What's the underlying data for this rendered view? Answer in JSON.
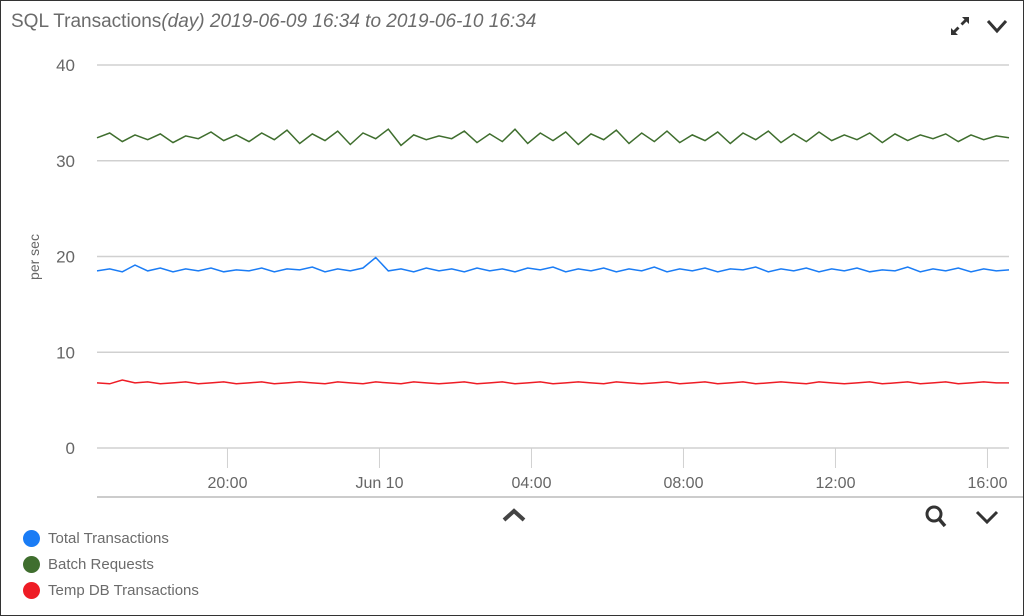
{
  "header": {
    "title_main": "SQL Transactions",
    "title_period": "(day) 2019-06-09 16:34 to 2019-06-10 16:34",
    "icons": [
      "expand-icon",
      "chevron-down-icon"
    ]
  },
  "footer": {
    "icons": [
      "chevron-up-icon",
      "zoom-icon",
      "chevron-down-icon"
    ]
  },
  "chart_data": {
    "type": "line",
    "title": "SQL Transactions(day) 2019-06-09 16:34 to 2019-06-10 16:34",
    "ylabel": "per sec",
    "xlabel": "",
    "ylim": [
      0,
      40
    ],
    "yticks": [
      "0",
      "10",
      "20",
      "30",
      "40"
    ],
    "x_range": [
      "2019-06-09 16:34",
      "2019-06-10 16:34"
    ],
    "interval_minutes": 20,
    "xticks": [
      {
        "label": "20:00",
        "time": "2019-06-09 20:00"
      },
      {
        "label": "Jun 10",
        "time": "2019-06-10 00:00"
      },
      {
        "label": "04:00",
        "time": "2019-06-10 04:00"
      },
      {
        "label": "08:00",
        "time": "2019-06-10 08:00"
      },
      {
        "label": "12:00",
        "time": "2019-06-10 12:00"
      },
      {
        "label": "16:00",
        "time": "2019-06-10 16:00"
      }
    ],
    "grid": true,
    "legend_placement": "bottom-left",
    "series": [
      {
        "name": "Total Transactions",
        "color": "#1a7cf5",
        "values": [
          18.5,
          18.7,
          18.4,
          19.1,
          18.5,
          18.8,
          18.4,
          18.7,
          18.5,
          18.8,
          18.4,
          18.6,
          18.5,
          18.8,
          18.4,
          18.7,
          18.6,
          18.9,
          18.4,
          18.7,
          18.5,
          18.8,
          19.9,
          18.5,
          18.7,
          18.4,
          18.8,
          18.5,
          18.7,
          18.4,
          18.8,
          18.5,
          18.7,
          18.4,
          18.8,
          18.6,
          18.9,
          18.4,
          18.7,
          18.5,
          18.8,
          18.4,
          18.7,
          18.5,
          18.9,
          18.4,
          18.7,
          18.5,
          18.8,
          18.4,
          18.7,
          18.6,
          18.9,
          18.4,
          18.7,
          18.5,
          18.8,
          18.4,
          18.7,
          18.5,
          18.8,
          18.4,
          18.6,
          18.5,
          18.9,
          18.4,
          18.7,
          18.5,
          18.8,
          18.4,
          18.7,
          18.5,
          18.6
        ]
      },
      {
        "name": "Batch Requests",
        "color": "#3f6e2e",
        "values": [
          32.4,
          32.9,
          32.0,
          32.7,
          32.2,
          32.8,
          31.9,
          32.6,
          32.3,
          33.0,
          32.1,
          32.7,
          32.0,
          32.9,
          32.2,
          33.2,
          31.8,
          32.8,
          32.1,
          33.1,
          31.7,
          32.9,
          32.3,
          33.3,
          31.6,
          32.7,
          32.2,
          32.6,
          32.3,
          33.1,
          31.9,
          32.8,
          32.0,
          33.3,
          31.8,
          32.9,
          32.1,
          33.0,
          31.7,
          32.8,
          32.2,
          33.2,
          31.8,
          32.9,
          32.0,
          33.1,
          31.9,
          32.7,
          32.1,
          33.0,
          31.8,
          32.9,
          32.2,
          33.1,
          31.9,
          32.8,
          32.0,
          33.0,
          32.1,
          32.7,
          32.2,
          32.9,
          31.9,
          32.8,
          32.1,
          32.7,
          32.3,
          32.8,
          32.0,
          32.7,
          32.2,
          32.6,
          32.4
        ]
      },
      {
        "name": "Temp DB Transactions",
        "color": "#ee1c25",
        "values": [
          6.8,
          6.7,
          7.1,
          6.8,
          6.9,
          6.7,
          6.8,
          6.9,
          6.7,
          6.8,
          6.9,
          6.7,
          6.8,
          6.9,
          6.7,
          6.8,
          6.9,
          6.8,
          6.7,
          6.9,
          6.8,
          6.7,
          6.9,
          6.8,
          6.7,
          6.9,
          6.8,
          6.7,
          6.8,
          6.9,
          6.7,
          6.8,
          6.9,
          6.7,
          6.8,
          6.9,
          6.7,
          6.8,
          6.9,
          6.8,
          6.7,
          6.9,
          6.8,
          6.7,
          6.8,
          6.9,
          6.7,
          6.8,
          6.9,
          6.7,
          6.8,
          6.9,
          6.7,
          6.8,
          6.9,
          6.8,
          6.7,
          6.9,
          6.8,
          6.7,
          6.8,
          6.9,
          6.7,
          6.8,
          6.9,
          6.7,
          6.8,
          6.9,
          6.7,
          6.8,
          6.9,
          6.8,
          6.8
        ]
      }
    ]
  }
}
